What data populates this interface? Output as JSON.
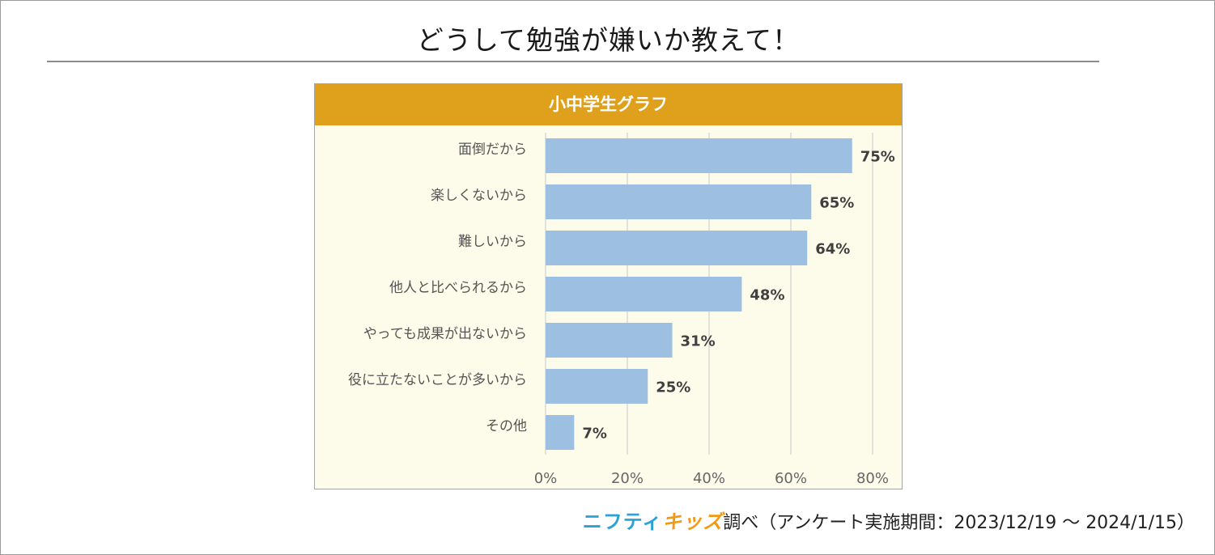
{
  "page": {
    "title": "どうして勉強が嫌いか教えて！"
  },
  "chart_data": {
    "type": "bar",
    "orientation": "horizontal",
    "title": "小中学生グラフ",
    "categories": [
      "面倒だから",
      "楽しくないから",
      "難しいから",
      "他人と比べられるから",
      "やっても成果が出ないから",
      "役に立たないことが多いから",
      "その他"
    ],
    "values": [
      75,
      65,
      64,
      48,
      31,
      25,
      7
    ],
    "value_labels": [
      "75%",
      "65%",
      "64%",
      "48%",
      "31%",
      "25%",
      "7%"
    ],
    "xlim": [
      0,
      80
    ],
    "xticks": [
      0,
      20,
      40,
      60,
      80
    ],
    "xtick_labels": [
      "0%",
      "20%",
      "40%",
      "60%",
      "80%"
    ],
    "grid": true,
    "bar_color": "#9dbfe1",
    "header_color": "#dfa01b",
    "background_color": "#fdfbe9"
  },
  "credit": {
    "brand_part1": "ニフティ",
    "brand_part2": "キッズ",
    "text": "調べ（アンケート実施期間：2023/12/19 ～ 2024/1/15）"
  }
}
